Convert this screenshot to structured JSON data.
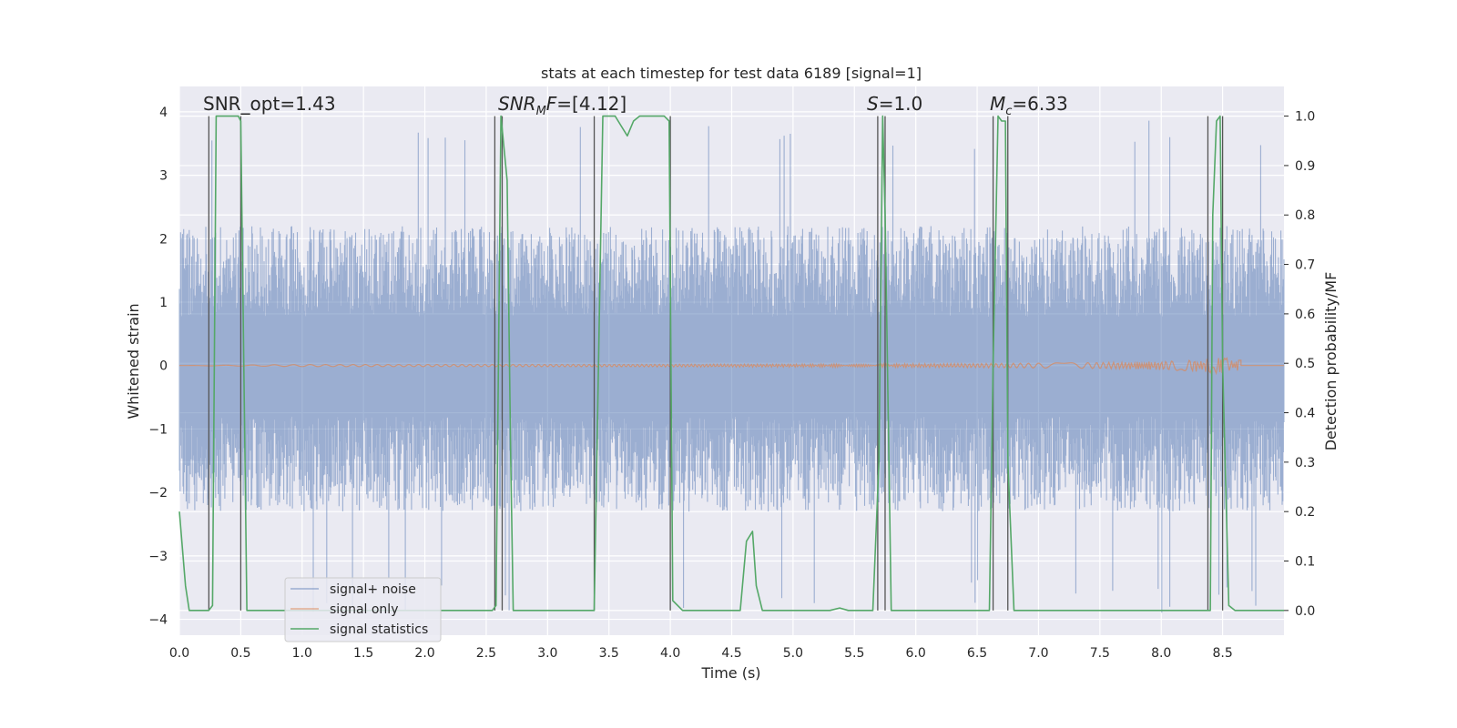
{
  "chart_data": {
    "type": "line",
    "title": "stats at each timestep for test data 6189 [signal=1]",
    "xlabel": "Time (s)",
    "ylabel_left": "Whitened strain",
    "ylabel_right": "Detection probability/MF",
    "xlim": [
      0.0,
      9.0
    ],
    "ylim_left": [
      -4.25,
      4.4
    ],
    "ylim_right": [
      -0.05,
      1.06
    ],
    "xticks": [
      0.0,
      0.5,
      1.0,
      1.5,
      2.0,
      2.5,
      3.0,
      3.5,
      4.0,
      4.5,
      5.0,
      5.5,
      6.0,
      6.5,
      7.0,
      7.5,
      8.0,
      8.5
    ],
    "xtick_labels": [
      "0.0",
      "0.5",
      "1.0",
      "1.5",
      "2.0",
      "2.5",
      "3.0",
      "3.5",
      "4.0",
      "4.5",
      "5.0",
      "5.5",
      "6.0",
      "6.5",
      "7.0",
      "7.5",
      "8.0",
      "8.5"
    ],
    "yticks_left": [
      4,
      3,
      2,
      1,
      0,
      -1,
      -2,
      -3,
      -4
    ],
    "ytick_labels_left": [
      "4",
      "3",
      "2",
      "1",
      "0",
      "−1",
      "−2",
      "−3",
      "−4"
    ],
    "yticks_right": [
      1.0,
      0.9,
      0.8,
      0.7,
      0.6,
      0.5,
      0.4,
      0.3,
      0.2,
      0.1,
      0.0
    ],
    "ytick_labels_right": [
      "1.0",
      "0.9",
      "0.8",
      "0.7",
      "0.6",
      "0.5",
      "0.4",
      "0.3",
      "0.2",
      "0.1",
      "0.0"
    ],
    "annotations": [
      {
        "text": "SNR_opt=1.43",
        "x": 0.2,
        "y": 4.1
      },
      {
        "text": "SNRMF=[4.12]",
        "x": 2.6,
        "y": 4.1
      },
      {
        "text": "S=1.0",
        "x": 5.6,
        "y": 4.1
      },
      {
        "text": "Mc=6.33",
        "x": 6.6,
        "y": 4.1
      }
    ],
    "noise_envelope": {
      "typical_upper": 2.2,
      "typical_lower": -2.3,
      "peak_upper": 4.0,
      "peak_lower": -3.9
    },
    "chirp_end_time": 8.65,
    "chirp_max_amplitude": 0.12,
    "vertical_lines_x": [
      0.24,
      0.5,
      2.57,
      2.63,
      3.38,
      4.0,
      5.69,
      5.75,
      6.63,
      6.75,
      8.38,
      8.5
    ],
    "series": [
      {
        "name": "signal+ noise",
        "color": "#4c72b0",
        "axis": "left",
        "description_values": "dense noise"
      },
      {
        "name": "signal only",
        "color": "#dd8452",
        "axis": "left"
      },
      {
        "name": "signal statistics",
        "color": "#55a868",
        "axis": "right",
        "x": [
          0.0,
          0.05,
          0.08,
          0.24,
          0.27,
          0.3,
          0.32,
          0.48,
          0.5,
          0.53,
          0.55,
          0.9,
          1.5,
          2.0,
          2.5,
          2.55,
          2.58,
          2.62,
          2.67,
          2.7,
          2.72,
          3.0,
          3.1,
          3.25,
          3.33,
          3.38,
          3.45,
          3.5,
          3.55,
          3.6,
          3.65,
          3.7,
          3.75,
          3.95,
          3.99,
          4.02,
          4.1,
          4.3,
          4.5,
          4.57,
          4.62,
          4.67,
          4.7,
          4.75,
          5.0,
          5.3,
          5.38,
          5.45,
          5.65,
          5.7,
          5.73,
          5.75,
          5.8,
          6.0,
          6.5,
          6.6,
          6.63,
          6.67,
          6.7,
          6.73,
          6.75,
          6.8,
          7.0,
          7.5,
          8.0,
          8.35,
          8.4,
          8.42,
          8.45,
          8.48,
          8.5,
          8.55,
          8.6,
          8.7,
          9.0
        ],
        "y": [
          0.2,
          0.05,
          0.0,
          0.0,
          0.01,
          1.0,
          1.0,
          1.0,
          0.99,
          0.4,
          0.0,
          0.0,
          0.0,
          0.0,
          0.0,
          0.0,
          0.01,
          1.0,
          0.87,
          0.3,
          0.0,
          0.0,
          0.0,
          0.0,
          0.0,
          0.0,
          1.0,
          1.0,
          1.0,
          0.98,
          0.96,
          0.99,
          1.0,
          1.0,
          0.99,
          0.02,
          0.0,
          0.0,
          0.0,
          0.0,
          0.14,
          0.16,
          0.05,
          0.0,
          0.0,
          0.0,
          0.005,
          0.0,
          0.0,
          0.3,
          1.0,
          0.8,
          0.0,
          0.0,
          0.0,
          0.0,
          0.5,
          1.0,
          0.99,
          0.99,
          0.3,
          0.0,
          0.0,
          0.0,
          0.0,
          0.0,
          0.0,
          0.8,
          0.99,
          1.0,
          0.5,
          0.01,
          0.0,
          0.0,
          0.0
        ]
      }
    ],
    "legend": {
      "entries": [
        "signal+ noise",
        "signal only",
        "signal statistics"
      ],
      "placement": "lower-left"
    }
  }
}
